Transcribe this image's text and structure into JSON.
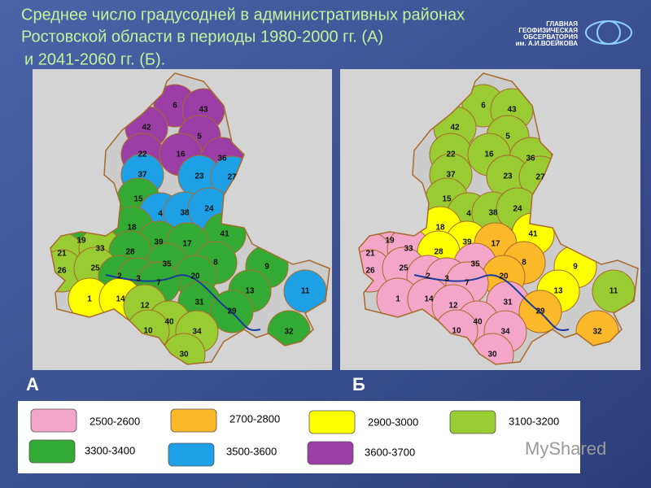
{
  "title_lines": [
    "Среднее число градусодней в административных районах",
    "Ростовской области в периоды 1980-2000 гг. (А)",
    "и 2041-2060 гг. (Б)."
  ],
  "logo": [
    "ГЛАВНАЯ",
    "ГЕОФИЗИЧЕСКАЯ",
    "ОБСЕРВАТОРИЯ",
    "им. А.И.ВОЕЙКОВА"
  ],
  "maps": [
    {
      "label": "А",
      "districts": [
        {
          "label": "6",
          "color": "#9b3fa6"
        },
        {
          "label": "43",
          "color": "#9b3fa6"
        },
        {
          "label": "42",
          "color": "#9b3fa6"
        },
        {
          "label": "5",
          "color": "#9b3fa6"
        },
        {
          "label": "22",
          "color": "#9b3fa6"
        },
        {
          "label": "16",
          "color": "#9b3fa6"
        },
        {
          "label": "36",
          "color": "#9b3fa6"
        },
        {
          "label": "37",
          "color": "#1ea0e6"
        },
        {
          "label": "23",
          "color": "#1ea0e6"
        },
        {
          "label": "27",
          "color": "#1ea0e6"
        },
        {
          "label": "15",
          "color": "#33aa33"
        },
        {
          "label": "4",
          "color": "#1ea0e6"
        },
        {
          "label": "38",
          "color": "#1ea0e6"
        },
        {
          "label": "24",
          "color": "#1ea0e6"
        },
        {
          "label": "18",
          "color": "#33aa33"
        },
        {
          "label": "41",
          "color": "#33aa33"
        },
        {
          "label": "19",
          "color": "#33aa33"
        },
        {
          "label": "39",
          "color": "#33aa33"
        },
        {
          "label": "17",
          "color": "#33aa33"
        },
        {
          "label": "21",
          "color": "#99cc33"
        },
        {
          "label": "33",
          "color": "#99cc33"
        },
        {
          "label": "28",
          "color": "#33aa33"
        },
        {
          "label": "35",
          "color": "#33aa33"
        },
        {
          "label": "8",
          "color": "#33aa33"
        },
        {
          "label": "9",
          "color": "#33aa33"
        },
        {
          "label": "26",
          "color": "#99cc33"
        },
        {
          "label": "25",
          "color": "#99cc33"
        },
        {
          "label": "2",
          "color": "#33aa33"
        },
        {
          "label": "3",
          "color": "#33aa33"
        },
        {
          "label": "20",
          "color": "#33aa33"
        },
        {
          "label": "7",
          "color": "#33aa33"
        },
        {
          "label": "13",
          "color": "#33aa33"
        },
        {
          "label": "11",
          "color": "#1ea0e6"
        },
        {
          "label": "1",
          "color": "#ffff00"
        },
        {
          "label": "14",
          "color": "#ffff00"
        },
        {
          "label": "12",
          "color": "#99cc33"
        },
        {
          "label": "31",
          "color": "#33aa33"
        },
        {
          "label": "29",
          "color": "#33aa33"
        },
        {
          "label": "40",
          "color": "#99cc33"
        },
        {
          "label": "10",
          "color": "#99cc33"
        },
        {
          "label": "34",
          "color": "#99cc33"
        },
        {
          "label": "32",
          "color": "#33aa33"
        },
        {
          "label": "30",
          "color": "#99cc33"
        }
      ]
    },
    {
      "label": "Б",
      "districts": [
        {
          "label": "6",
          "color": "#99cc33"
        },
        {
          "label": "43",
          "color": "#99cc33"
        },
        {
          "label": "42",
          "color": "#99cc33"
        },
        {
          "label": "5",
          "color": "#99cc33"
        },
        {
          "label": "22",
          "color": "#99cc33"
        },
        {
          "label": "16",
          "color": "#99cc33"
        },
        {
          "label": "36",
          "color": "#99cc33"
        },
        {
          "label": "37",
          "color": "#99cc33"
        },
        {
          "label": "23",
          "color": "#99cc33"
        },
        {
          "label": "27",
          "color": "#99cc33"
        },
        {
          "label": "15",
          "color": "#99cc33"
        },
        {
          "label": "4",
          "color": "#99cc33"
        },
        {
          "label": "38",
          "color": "#99cc33"
        },
        {
          "label": "24",
          "color": "#99cc33"
        },
        {
          "label": "18",
          "color": "#ffff00"
        },
        {
          "label": "41",
          "color": "#ffff00"
        },
        {
          "label": "19",
          "color": "#f4a6c8"
        },
        {
          "label": "39",
          "color": "#ffff00"
        },
        {
          "label": "17",
          "color": "#fbb829"
        },
        {
          "label": "21",
          "color": "#f4a6c8"
        },
        {
          "label": "33",
          "color": "#f4a6c8"
        },
        {
          "label": "28",
          "color": "#ffff00"
        },
        {
          "label": "35",
          "color": "#f4a6c8"
        },
        {
          "label": "8",
          "color": "#fbb829"
        },
        {
          "label": "9",
          "color": "#ffff00"
        },
        {
          "label": "26",
          "color": "#f4a6c8"
        },
        {
          "label": "25",
          "color": "#f4a6c8"
        },
        {
          "label": "2",
          "color": "#f4a6c8"
        },
        {
          "label": "3",
          "color": "#f4a6c8"
        },
        {
          "label": "20",
          "color": "#fbb829"
        },
        {
          "label": "7",
          "color": "#f4a6c8"
        },
        {
          "label": "13",
          "color": "#ffff00"
        },
        {
          "label": "11",
          "color": "#99cc33"
        },
        {
          "label": "1",
          "color": "#f4a6c8"
        },
        {
          "label": "14",
          "color": "#f4a6c8"
        },
        {
          "label": "12",
          "color": "#f4a6c8"
        },
        {
          "label": "31",
          "color": "#f4a6c8"
        },
        {
          "label": "29",
          "color": "#fbb829"
        },
        {
          "label": "40",
          "color": "#f4a6c8"
        },
        {
          "label": "10",
          "color": "#f4a6c8"
        },
        {
          "label": "34",
          "color": "#f4a6c8"
        },
        {
          "label": "32",
          "color": "#fbb829"
        },
        {
          "label": "30",
          "color": "#f4a6c8"
        }
      ]
    }
  ],
  "legend": [
    {
      "label": "2500-2600",
      "color": "#f4a6c8"
    },
    {
      "label": "2700-2800",
      "color": "#fbb829"
    },
    {
      "label": "2900-3000",
      "color": "#ffff00"
    },
    {
      "label": "3100-3200",
      "color": "#99cc33"
    },
    {
      "label": "3300-3400",
      "color": "#33aa33"
    },
    {
      "label": "3500-3600",
      "color": "#1ea0e6"
    },
    {
      "label": "3600-3700",
      "color": "#9b3fa6"
    }
  ],
  "watermark": "MyShared"
}
